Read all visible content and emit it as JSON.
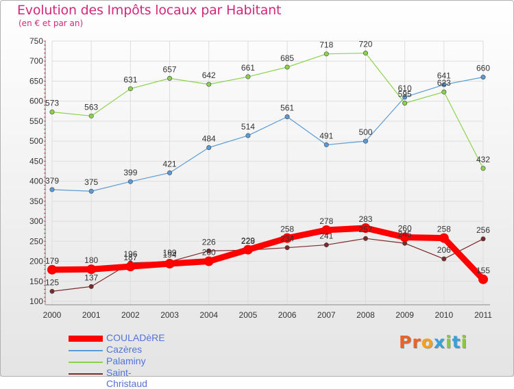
{
  "header": {
    "title": "Evolution des Impôts locaux par Habitant",
    "subtitle": "(en € et par an)"
  },
  "logo": {
    "letters": [
      "P",
      "r",
      "o",
      "x",
      "i",
      "t",
      "i"
    ]
  },
  "colors": {
    "title": "#d2287a",
    "legend_text": "#5472d8",
    "axis_text": "#333333",
    "grid": "#dddddd",
    "logo": [
      "#e8622a",
      "#e8622a",
      "#f4a020",
      "#3aa0d8",
      "#8cc63f",
      "#3aa0d8",
      "#8cc63f"
    ]
  },
  "chart_data": {
    "type": "line",
    "title": "Evolution des Impôts locaux par Habitant",
    "subtitle": "(en € et par an)",
    "xlabel": "",
    "ylabel": "",
    "x": [
      "2000",
      "2001",
      "2002",
      "2003",
      "2004",
      "2005",
      "2006",
      "2007",
      "2008",
      "2009",
      "2010",
      "2011"
    ],
    "ylim": [
      100,
      750
    ],
    "yticks": [
      100,
      150,
      200,
      250,
      300,
      350,
      400,
      450,
      500,
      550,
      600,
      650,
      700,
      750
    ],
    "grid": true,
    "legend_position": "bottom-left",
    "series": [
      {
        "name": "COULADèRE",
        "color": "#ff0000",
        "emphasis": true,
        "values": [
          179,
          180,
          187,
          194,
          200,
          229,
          258,
          278,
          283,
          260,
          258,
          155
        ],
        "labels": [
          "179",
          "180",
          "187",
          "194",
          "200",
          "229",
          "258",
          "278",
          "283",
          "260",
          "258",
          "155"
        ]
      },
      {
        "name": "Cazères",
        "color": "#5b9bd5",
        "emphasis": false,
        "values": [
          379,
          375,
          399,
          421,
          484,
          514,
          561,
          491,
          500,
          610,
          641,
          660
        ],
        "labels": [
          "379",
          "375",
          "399",
          "421",
          "484",
          "514",
          "561",
          "491",
          "500",
          "610",
          "641",
          "660"
        ]
      },
      {
        "name": "Palaminy",
        "color": "#8bd24c",
        "emphasis": false,
        "values": [
          573,
          563,
          631,
          657,
          642,
          661,
          685,
          718,
          720,
          595,
          623,
          432
        ],
        "labels": [
          "573",
          "563",
          "631",
          "657",
          "642",
          "661",
          "685",
          "718",
          "720",
          "595",
          "623",
          "432"
        ]
      },
      {
        "name": "Saint-Christaud",
        "color": "#7a2a2a",
        "emphasis": false,
        "values": [
          125,
          137,
          196,
          199,
          226,
          228,
          234,
          241,
          257,
          245,
          206,
          256
        ],
        "labels": [
          "125",
          "137",
          "196",
          "199",
          "226",
          "228",
          "234",
          "241",
          "257",
          "245",
          "206",
          "256"
        ]
      }
    ]
  }
}
